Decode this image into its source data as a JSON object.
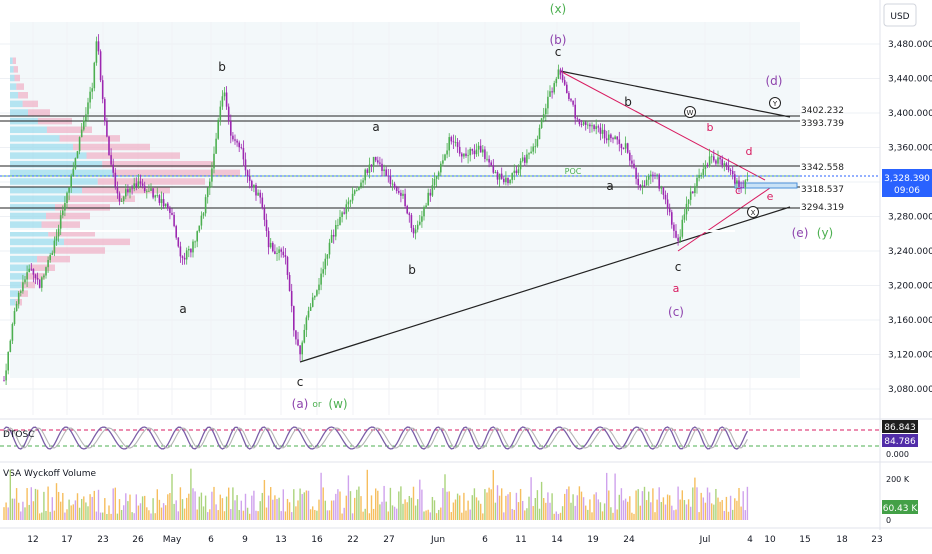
{
  "currency_label": "USD",
  "price_axis": {
    "ticks": [
      "3,480.000",
      "3,440.000",
      "3,400.000",
      "3,360.000",
      "3,320.000",
      "3,280.000",
      "3,240.000",
      "3,200.000",
      "3,160.000",
      "3,120.000",
      "3,080.000"
    ],
    "current_price": "3,328.390",
    "countdown": "09:06"
  },
  "level_labels": [
    "3402.232",
    "3393.739",
    "3342.558",
    "3318.537",
    "3294.319"
  ],
  "poc_label": "POC",
  "wave_labels": {
    "x_top": "(x)",
    "b_paren": "(b)",
    "c_top": "c",
    "d_paren": "(d)",
    "b_april": "b",
    "a_mid": "a",
    "b_mid": "b",
    "b_pink_mid": "b",
    "b_pink": "b",
    "d_pink": "d",
    "e_pink": "e",
    "c_pink": "c",
    "a_june": "a",
    "c_june": "c",
    "a_pink": "a",
    "c_paren": "(c)",
    "e_paren": "(e)",
    "y_paren": "(y)",
    "a_may": "a",
    "b_may": "b",
    "c_bottom": "c",
    "a_paren": "(a)",
    "or_text": "or",
    "w_paren": "(w)",
    "circle_w": "W",
    "circle_y": "Y",
    "circle_x": "X"
  },
  "oscillator": {
    "name": "DTOSC",
    "value_1": "86.843",
    "value_2": "84.786",
    "scale_label": "0.000"
  },
  "volume": {
    "name": "VSA Wyckoff Volume",
    "scale_top": "200 K",
    "value": "60.43 K",
    "scale_zero": "0"
  },
  "x_axis": [
    "12",
    "17",
    "23",
    "26",
    "May",
    "6",
    "9",
    "13",
    "16",
    "22",
    "27",
    "Jun",
    "6",
    "11",
    "14",
    "19",
    "24",
    "Jul",
    "4",
    "10",
    "15",
    "18",
    "23"
  ],
  "colors": {
    "up": "#4caf50",
    "down": "#9c27b0",
    "pink": "#d81b60",
    "price_tag": "#2962ff",
    "volume_tag": "#43a047",
    "osc_tag": "#512da8"
  },
  "chart_data": {
    "type": "candlestick",
    "instrument_currency": "USD",
    "y_range": [
      3060,
      3500
    ],
    "x_tick_labels": [
      "12",
      "17",
      "23",
      "26",
      "May",
      "6",
      "9",
      "13",
      "16",
      "22",
      "27",
      "Jun",
      "6",
      "11",
      "14",
      "19",
      "24",
      "Jul",
      "4",
      "10",
      "15",
      "18",
      "23"
    ],
    "horizontal_levels": [
      3402.232,
      3393.739,
      3342.558,
      3318.537,
      3294.319
    ],
    "last_price": 3328.39,
    "path_points": [
      [
        0,
        3060
      ],
      [
        8,
        3120
      ],
      [
        18,
        3190
      ],
      [
        30,
        3220
      ],
      [
        40,
        3200
      ],
      [
        55,
        3250
      ],
      [
        70,
        3320
      ],
      [
        82,
        3380
      ],
      [
        92,
        3430
      ],
      [
        97,
        3490
      ],
      [
        102,
        3420
      ],
      [
        110,
        3340
      ],
      [
        120,
        3300
      ],
      [
        135,
        3320
      ],
      [
        150,
        3310
      ],
      [
        160,
        3300
      ],
      [
        172,
        3280
      ],
      [
        182,
        3230
      ],
      [
        192,
        3245
      ],
      [
        200,
        3270
      ],
      [
        210,
        3320
      ],
      [
        218,
        3390
      ],
      [
        224,
        3430
      ],
      [
        230,
        3380
      ],
      [
        240,
        3360
      ],
      [
        250,
        3320
      ],
      [
        260,
        3300
      ],
      [
        268,
        3250
      ],
      [
        276,
        3240
      ],
      [
        286,
        3230
      ],
      [
        294,
        3150
      ],
      [
        300,
        3120
      ],
      [
        308,
        3170
      ],
      [
        318,
        3200
      ],
      [
        330,
        3250
      ],
      [
        345,
        3290
      ],
      [
        360,
        3320
      ],
      [
        376,
        3350
      ],
      [
        390,
        3320
      ],
      [
        404,
        3300
      ],
      [
        414,
        3260
      ],
      [
        424,
        3290
      ],
      [
        434,
        3320
      ],
      [
        450,
        3370
      ],
      [
        464,
        3350
      ],
      [
        480,
        3360
      ],
      [
        494,
        3330
      ],
      [
        506,
        3320
      ],
      [
        520,
        3340
      ],
      [
        534,
        3360
      ],
      [
        546,
        3410
      ],
      [
        556,
        3440
      ],
      [
        560,
        3450
      ],
      [
        568,
        3420
      ],
      [
        578,
        3390
      ],
      [
        596,
        3380
      ],
      [
        612,
        3370
      ],
      [
        626,
        3360
      ],
      [
        640,
        3310
      ],
      [
        655,
        3330
      ],
      [
        668,
        3290
      ],
      [
        678,
        3250
      ],
      [
        688,
        3300
      ],
      [
        700,
        3330
      ],
      [
        712,
        3350
      ],
      [
        722,
        3340
      ],
      [
        732,
        3330
      ],
      [
        740,
        3310
      ],
      [
        748,
        3328
      ]
    ],
    "volume_profile": [
      [
        3460,
        6
      ],
      [
        3450,
        8
      ],
      [
        3440,
        10
      ],
      [
        3430,
        14
      ],
      [
        3420,
        18
      ],
      [
        3410,
        28
      ],
      [
        3400,
        40
      ],
      [
        3390,
        62
      ],
      [
        3380,
        82
      ],
      [
        3370,
        110
      ],
      [
        3360,
        140
      ],
      [
        3350,
        170
      ],
      [
        3340,
        205
      ],
      [
        3330,
        230
      ],
      [
        3320,
        195
      ],
      [
        3310,
        160
      ],
      [
        3300,
        125
      ],
      [
        3290,
        100
      ],
      [
        3280,
        80
      ],
      [
        3270,
        70
      ],
      [
        3260,
        85
      ],
      [
        3250,
        120
      ],
      [
        3240,
        95
      ],
      [
        3230,
        60
      ],
      [
        3220,
        45
      ],
      [
        3210,
        35
      ],
      [
        3200,
        25
      ],
      [
        3190,
        18
      ],
      [
        3180,
        12
      ]
    ],
    "oscillator": {
      "name": "DTOSC",
      "values": [
        86.843,
        84.786
      ],
      "levels": [
        80,
        20
      ]
    },
    "volume_last": "60.43 K"
  }
}
